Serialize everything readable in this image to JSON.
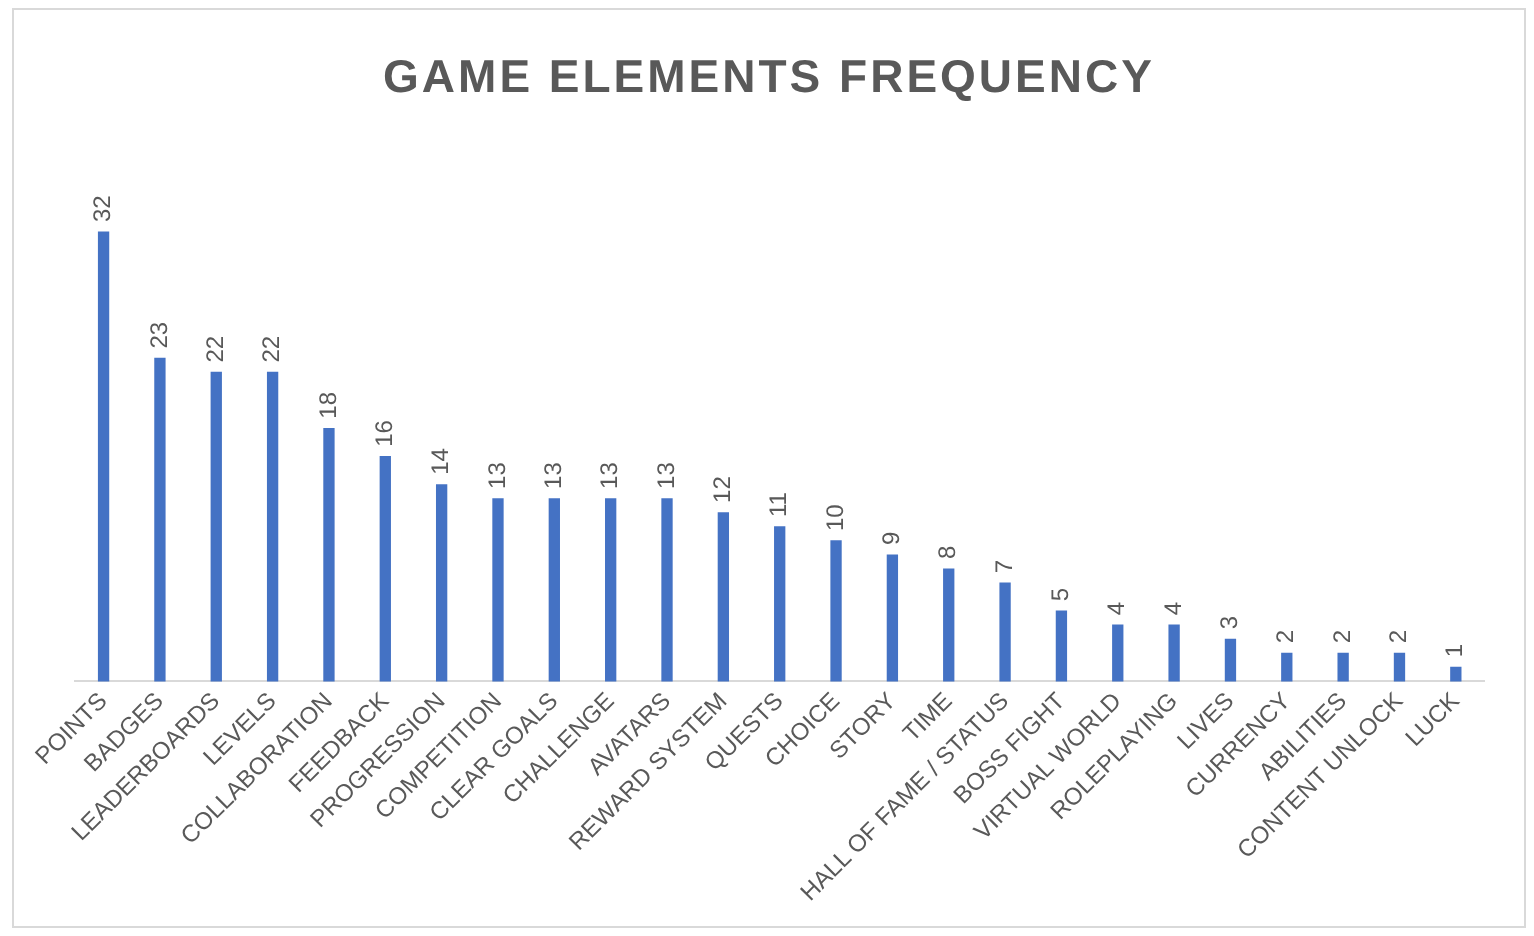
{
  "chart_data": {
    "type": "bar",
    "title": "GAME ELEMENTS FREQUENCY",
    "categories": [
      "POINTS",
      "BADGES",
      "LEADERBOARDS",
      "LEVELS",
      "COLLABORATION",
      "FEEDBACK",
      "PROGRESSION",
      "COMPETITION",
      "CLEAR GOALS",
      "CHALLENGE",
      "AVATARS",
      "REWARD SYSTEM",
      "QUESTS",
      "CHOICE",
      "STORY",
      "TIME",
      "HALL OF FAME / STATUS",
      "BOSS FIGHT",
      "VIRTUAL WORLD",
      "ROLEPLAYING",
      "LIVES",
      "CURRENCY",
      "ABILITIES",
      "CONTENT UNLOCK",
      "LUCK"
    ],
    "values": [
      32,
      23,
      22,
      22,
      18,
      16,
      14,
      13,
      13,
      13,
      13,
      12,
      11,
      10,
      9,
      8,
      7,
      5,
      4,
      4,
      3,
      2,
      2,
      2,
      1
    ],
    "color": "#4472c4",
    "data_labels": true,
    "grid": false,
    "legend": false
  }
}
